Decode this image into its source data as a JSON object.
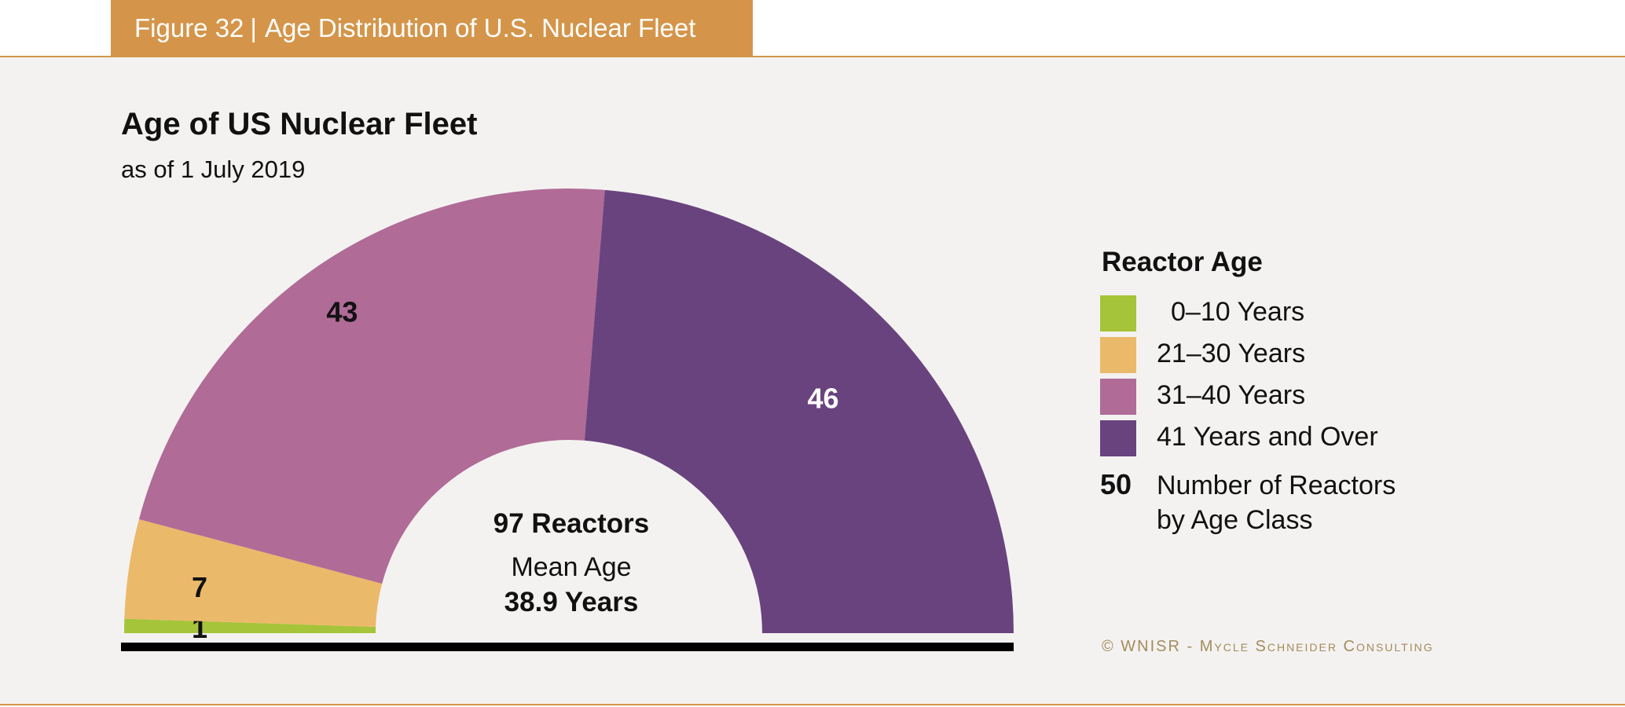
{
  "header": {
    "figure_label": "Figure 32",
    "separator": "|",
    "figure_title": "Age Distribution of U.S. Nuclear Fleet"
  },
  "colors": {
    "accent": "#d4954a",
    "background": "#f4f2f1",
    "green": "#a6c43a",
    "orange": "#ebb96a",
    "pink": "#b06b97",
    "purple": "#69437e"
  },
  "chart_data": {
    "type": "pie",
    "shape": "half-donut",
    "title": "Age of US Nuclear Fleet",
    "subtitle": "as of 1 July 2019",
    "series": [
      {
        "name": "0–10 Years",
        "label": "1",
        "value": 1,
        "color": "#a6c43a",
        "label_color": "#111111"
      },
      {
        "name": "21–30 Years",
        "label": "7",
        "value": 7,
        "color": "#ebb96a",
        "label_color": "#111111"
      },
      {
        "name": "31–40 Years",
        "label": "43",
        "value": 43,
        "color": "#b06b97",
        "label_color": "#111111"
      },
      {
        "name": "41 Years and Over",
        "label": "46",
        "value": 46,
        "color": "#69437e",
        "label_color": "#ffffff"
      }
    ],
    "center": {
      "total": "97 Reactors",
      "mean_label": "Mean Age",
      "mean_value": "38.9 Years"
    }
  },
  "legend": {
    "title": "Reactor Age",
    "items": [
      "0–10 Years",
      "21–30 Years",
      "31–40 Years",
      "41 Years and Over"
    ],
    "number_example": "50",
    "number_line1": "Number of Reactors",
    "number_line2": "by Age Class"
  },
  "credit": "© WNISR - Mycle Schneider Consulting"
}
